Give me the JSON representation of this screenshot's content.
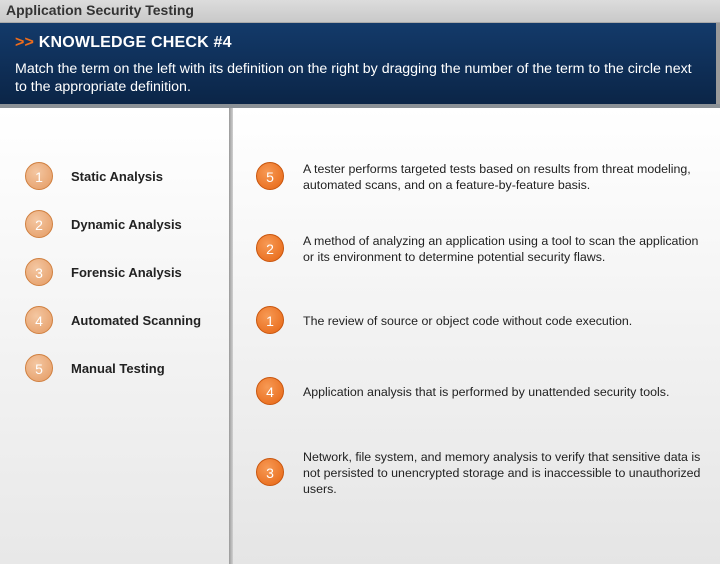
{
  "window": {
    "title": "Application Security Testing"
  },
  "header": {
    "arrows": ">>",
    "title": "KNOWLEDGE CHECK #4",
    "instruction": "Match the term on the left with its definition on the right by dragging the number of the term to the circle next to the appropriate definition."
  },
  "terms": [
    {
      "number": "1",
      "label": "Static Analysis"
    },
    {
      "number": "2",
      "label": "Dynamic Analysis"
    },
    {
      "number": "3",
      "label": "Forensic Analysis"
    },
    {
      "number": "4",
      "label": "Automated Scanning"
    },
    {
      "number": "5",
      "label": "Manual Testing"
    }
  ],
  "definitions": [
    {
      "answer": "5",
      "text": "A tester performs targeted tests based on results from threat modeling, automated scans, and on a feature-by-feature basis."
    },
    {
      "answer": "2",
      "text": "A method of analyzing an application using a tool to scan the application or its environment to determine potential security flaws."
    },
    {
      "answer": "1",
      "text": "The review of source or object code without code execution."
    },
    {
      "answer": "4",
      "text": "Application analysis that is performed by unattended security tools."
    },
    {
      "answer": "3",
      "text": "Network, file system, and memory analysis to verify that sensitive data is not persisted to unencrypted storage and is inaccessible to unauthorized users."
    }
  ],
  "colors": {
    "header_bg": "#0b2547",
    "accent_orange": "#ee6d1c",
    "term_circle": "#e9a878",
    "answer_circle": "#e66412"
  }
}
